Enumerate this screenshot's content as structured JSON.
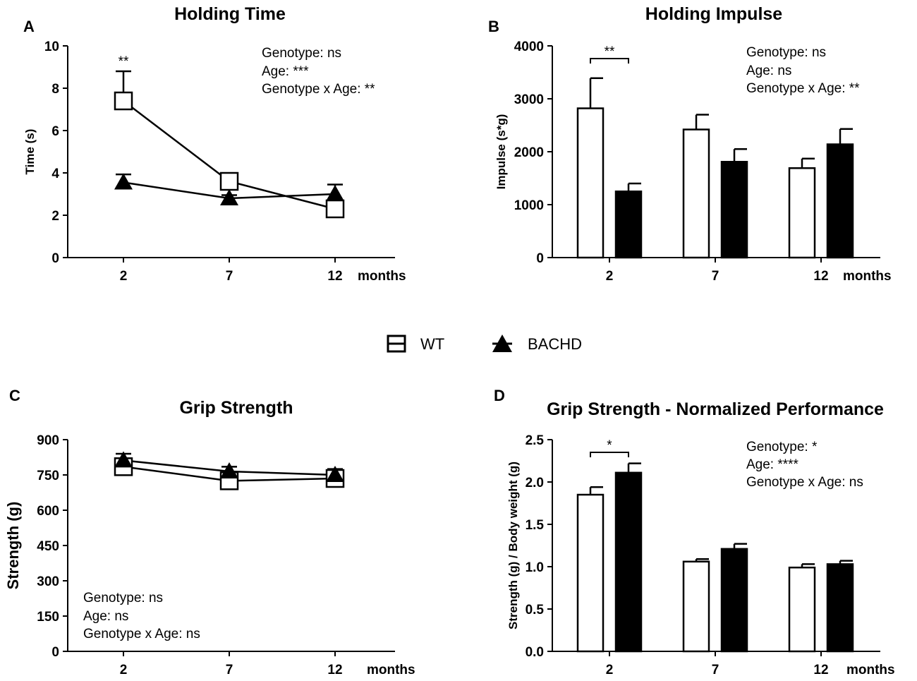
{
  "legend": {
    "items": [
      {
        "label": "WT",
        "marker": "open-square"
      },
      {
        "label": "BACHD",
        "marker": "filled-triangle"
      }
    ]
  },
  "chart_data": [
    {
      "id": "A",
      "letter": "A",
      "type": "line",
      "title": "Holding Time",
      "ylabel": "Time (s)",
      "xlabel": "months",
      "categories": [
        "2",
        "7",
        "12"
      ],
      "ylim": [
        0,
        10
      ],
      "yticks": [
        0,
        2,
        4,
        6,
        8,
        10
      ],
      "series": [
        {
          "name": "WT",
          "marker": "open-square",
          "values": [
            7.4,
            3.6,
            2.3
          ],
          "errors": [
            1.4,
            0.3,
            0.2
          ]
        },
        {
          "name": "BACHD",
          "marker": "filled-triangle",
          "values": [
            3.55,
            2.8,
            3.0
          ],
          "errors": [
            0.38,
            0.15,
            0.45
          ]
        }
      ],
      "stats": [
        "Genotype: ns",
        "Age: ***",
        "Genotype x Age: **"
      ],
      "significance": [
        {
          "category": "2",
          "label": "**"
        }
      ]
    },
    {
      "id": "B",
      "letter": "B",
      "type": "bar",
      "title": "Holding Impulse",
      "ylabel": "Impulse (s*g)",
      "xlabel": "months",
      "categories": [
        "2",
        "7",
        "12"
      ],
      "ylim": [
        0,
        4000
      ],
      "yticks": [
        0,
        1000,
        2000,
        3000,
        4000
      ],
      "series": [
        {
          "name": "WT",
          "fill": "#ffffff",
          "values": [
            2820,
            2420,
            1690
          ],
          "errors": [
            570,
            280,
            180
          ]
        },
        {
          "name": "BACHD",
          "fill": "#000000",
          "values": [
            1250,
            1810,
            2140
          ],
          "errors": [
            150,
            240,
            290
          ]
        }
      ],
      "stats": [
        "Genotype: ns",
        "Age: ns",
        "Genotype x Age: **"
      ],
      "significance": [
        {
          "category": "2",
          "label": "**",
          "bracket": true
        }
      ]
    },
    {
      "id": "C",
      "letter": "C",
      "type": "line",
      "title": "Grip Strength",
      "ylabel": "Strength (g)",
      "xlabel": "months",
      "categories": [
        "2",
        "7",
        "12"
      ],
      "ylim": [
        0,
        900
      ],
      "yticks": [
        0,
        150,
        300,
        450,
        600,
        750,
        900
      ],
      "series": [
        {
          "name": "WT",
          "marker": "open-square",
          "values": [
            785,
            725,
            735
          ],
          "errors": [
            25,
            18,
            20
          ]
        },
        {
          "name": "BACHD",
          "marker": "filled-triangle",
          "values": [
            812,
            765,
            750
          ],
          "errors": [
            28,
            20,
            25
          ]
        }
      ],
      "stats": [
        "Genotype: ns",
        "Age: ns",
        "Genotype x Age: ns"
      ],
      "significance": []
    },
    {
      "id": "D",
      "letter": "D",
      "type": "bar",
      "title": "Grip Strength - Normalized Performance",
      "ylabel": "Strength (g) / Body weight (g)",
      "xlabel": "months",
      "categories": [
        "2",
        "7",
        "12"
      ],
      "ylim": [
        0,
        2.5
      ],
      "yticks": [
        "0.0",
        "0.5",
        "1.0",
        "1.5",
        "2.0",
        "2.5"
      ],
      "series": [
        {
          "name": "WT",
          "fill": "#ffffff",
          "values": [
            1.85,
            1.06,
            0.99
          ],
          "errors": [
            0.09,
            0.03,
            0.04
          ]
        },
        {
          "name": "BACHD",
          "fill": "#000000",
          "values": [
            2.11,
            1.21,
            1.03
          ],
          "errors": [
            0.11,
            0.06,
            0.04
          ]
        }
      ],
      "stats": [
        "Genotype: *",
        "Age: ****",
        "Genotype x Age: ns"
      ],
      "significance": [
        {
          "category": "2",
          "label": "*",
          "bracket": true
        }
      ]
    }
  ]
}
